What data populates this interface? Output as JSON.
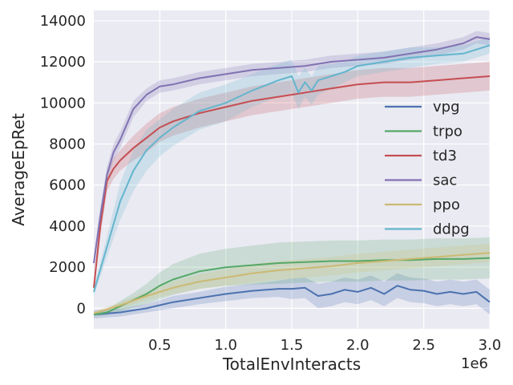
{
  "chart_data": {
    "type": "line",
    "title": "",
    "xlabel": "TotalEnvInteracts",
    "ylabel": "AverageEpRet",
    "x_multiplier_label": "1e6",
    "xlim": [
      0,
      3.0
    ],
    "ylim": [
      -1000,
      14500
    ],
    "x_ticks": [
      0.5,
      1.0,
      1.5,
      2.0,
      2.5,
      3.0
    ],
    "x_tick_labels": [
      "0.5",
      "1.0",
      "1.5",
      "2.0",
      "2.5",
      "3.0"
    ],
    "y_ticks": [
      0,
      2000,
      4000,
      6000,
      8000,
      10000,
      12000,
      14000
    ],
    "y_tick_labels": [
      "0",
      "2000",
      "4000",
      "6000",
      "8000",
      "10000",
      "12000",
      "14000"
    ],
    "grid": true,
    "legend_position": "right",
    "background": "#eaeaf2",
    "series": [
      {
        "name": "vpg",
        "color": "#4c72b0",
        "x": [
          0,
          0.1,
          0.2,
          0.3,
          0.4,
          0.5,
          0.6,
          0.8,
          1.0,
          1.2,
          1.4,
          1.5,
          1.6,
          1.7,
          1.8,
          1.9,
          2.0,
          2.1,
          2.2,
          2.3,
          2.4,
          2.5,
          2.6,
          2.7,
          2.8,
          2.9,
          3.0
        ],
        "y": [
          -300,
          -250,
          -200,
          -100,
          0,
          150,
          300,
          500,
          700,
          850,
          950,
          950,
          1000,
          600,
          700,
          900,
          800,
          1000,
          700,
          1100,
          900,
          850,
          700,
          800,
          700,
          800,
          300
        ],
        "band": [
          200,
          200,
          200,
          200,
          200,
          250,
          300,
          300,
          350,
          350,
          400,
          500,
          500,
          600,
          600,
          600,
          600,
          600,
          600,
          600,
          600,
          600,
          600,
          600,
          600,
          600,
          600
        ]
      },
      {
        "name": "trpo",
        "color": "#55a868",
        "x": [
          0,
          0.1,
          0.2,
          0.3,
          0.4,
          0.5,
          0.6,
          0.8,
          1.0,
          1.2,
          1.4,
          1.6,
          1.8,
          2.0,
          2.2,
          2.4,
          2.6,
          2.8,
          3.0
        ],
        "y": [
          -300,
          -200,
          100,
          400,
          700,
          1100,
          1400,
          1800,
          2000,
          2100,
          2200,
          2250,
          2300,
          2300,
          2350,
          2350,
          2400,
          2400,
          2450
        ],
        "band": [
          100,
          150,
          250,
          350,
          500,
          650,
          750,
          850,
          900,
          950,
          1000,
          1000,
          1000,
          1000,
          1000,
          1000,
          1000,
          1000,
          1000
        ]
      },
      {
        "name": "td3",
        "color": "#c44e52",
        "x": [
          0,
          0.05,
          0.1,
          0.15,
          0.2,
          0.3,
          0.4,
          0.5,
          0.6,
          0.8,
          1.0,
          1.2,
          1.4,
          1.6,
          1.8,
          2.0,
          2.2,
          2.4,
          2.6,
          2.8,
          3.0
        ],
        "y": [
          1000,
          4000,
          6200,
          6800,
          7200,
          7800,
          8300,
          8800,
          9100,
          9500,
          9800,
          10100,
          10300,
          10500,
          10700,
          10900,
          11000,
          11000,
          11100,
          11200,
          11300
        ],
        "band": [
          300,
          500,
          500,
          500,
          500,
          600,
          700,
          700,
          700,
          700,
          700,
          700,
          700,
          700,
          700,
          700,
          700,
          700,
          700,
          700,
          700
        ]
      },
      {
        "name": "sac",
        "color": "#8172b2",
        "x": [
          0,
          0.05,
          0.1,
          0.15,
          0.2,
          0.3,
          0.4,
          0.5,
          0.6,
          0.8,
          1.0,
          1.2,
          1.4,
          1.6,
          1.8,
          2.0,
          2.2,
          2.4,
          2.6,
          2.8,
          2.9,
          3.0
        ],
        "y": [
          2200,
          4500,
          6500,
          7600,
          8200,
          9700,
          10400,
          10800,
          10900,
          11200,
          11400,
          11600,
          11700,
          11800,
          12000,
          12100,
          12200,
          12400,
          12600,
          12900,
          13200,
          13100
        ],
        "band": [
          300,
          400,
          400,
          400,
          400,
          400,
          300,
          300,
          300,
          300,
          300,
          300,
          300,
          300,
          300,
          300,
          300,
          300,
          300,
          300,
          300,
          300
        ]
      },
      {
        "name": "ppo",
        "color": "#ccb974",
        "x": [
          0,
          0.2,
          0.4,
          0.6,
          0.8,
          1.0,
          1.2,
          1.4,
          1.6,
          1.8,
          2.0,
          2.2,
          2.4,
          2.6,
          2.8,
          3.0
        ],
        "y": [
          -250,
          150,
          600,
          1000,
          1300,
          1500,
          1700,
          1850,
          1950,
          2050,
          2200,
          2300,
          2400,
          2500,
          2600,
          2700
        ],
        "band": [
          100,
          150,
          200,
          300,
          350,
          400,
          450,
          450,
          450,
          450,
          450,
          450,
          450,
          450,
          450,
          450
        ]
      },
      {
        "name": "ddpg",
        "color": "#64b5cd",
        "x": [
          0,
          0.1,
          0.2,
          0.3,
          0.4,
          0.5,
          0.6,
          0.8,
          1.0,
          1.2,
          1.4,
          1.5,
          1.55,
          1.6,
          1.65,
          1.7,
          1.8,
          1.9,
          2.0,
          2.2,
          2.4,
          2.6,
          2.8,
          3.0
        ],
        "y": [
          800,
          3000,
          5200,
          6700,
          7700,
          8300,
          8800,
          9600,
          10000,
          10600,
          11100,
          11300,
          10500,
          11000,
          10600,
          11100,
          11300,
          11500,
          11800,
          12000,
          12200,
          12300,
          12400,
          12800
        ],
        "band": [
          200,
          500,
          900,
          1000,
          1000,
          900,
          900,
          900,
          900,
          800,
          800,
          800,
          800,
          700,
          700,
          700,
          600,
          500,
          500,
          500,
          500,
          400,
          400,
          400
        ]
      }
    ]
  }
}
